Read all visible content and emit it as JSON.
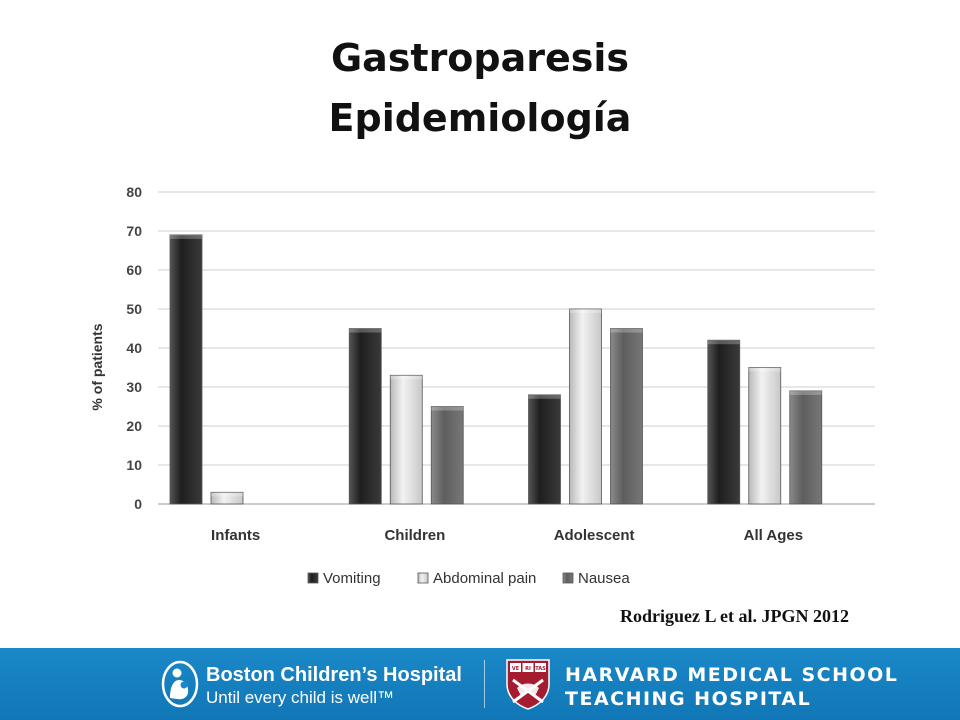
{
  "slide": {
    "title_line1": "Gastroparesis",
    "title_line2": "Epidemiología",
    "citation": "Rodriguez L et al. JPGN 2012"
  },
  "footer": {
    "bch_name": "Boston Children’s Hospital",
    "bch_tagline": "Until every child is well™",
    "hms_line1": "HARVARD MEDICAL SCHOOL",
    "hms_line2": "TEACHING HOSPITAL",
    "shield_text": [
      "VE",
      "RI",
      "TAS"
    ]
  },
  "chart_data": {
    "type": "bar",
    "categories": [
      "Infants",
      "Children",
      "Adolescent",
      "All Ages"
    ],
    "series": [
      {
        "name": "Vomiting",
        "values": [
          69,
          45,
          28,
          42
        ],
        "color": "#2a2a2a"
      },
      {
        "name": "Abdominal pain",
        "values": [
          3,
          33,
          50,
          35
        ],
        "color": "#d8d8d8"
      },
      {
        "name": "Nausea",
        "values": [
          0,
          25,
          45,
          29
        ],
        "color": "#6e6e6e"
      }
    ],
    "ylabel": "% of patients",
    "ylim": [
      0,
      80
    ],
    "yticks": [
      0,
      10,
      20,
      30,
      40,
      50,
      60,
      70,
      80
    ],
    "grid": true,
    "legend_position": "bottom"
  }
}
